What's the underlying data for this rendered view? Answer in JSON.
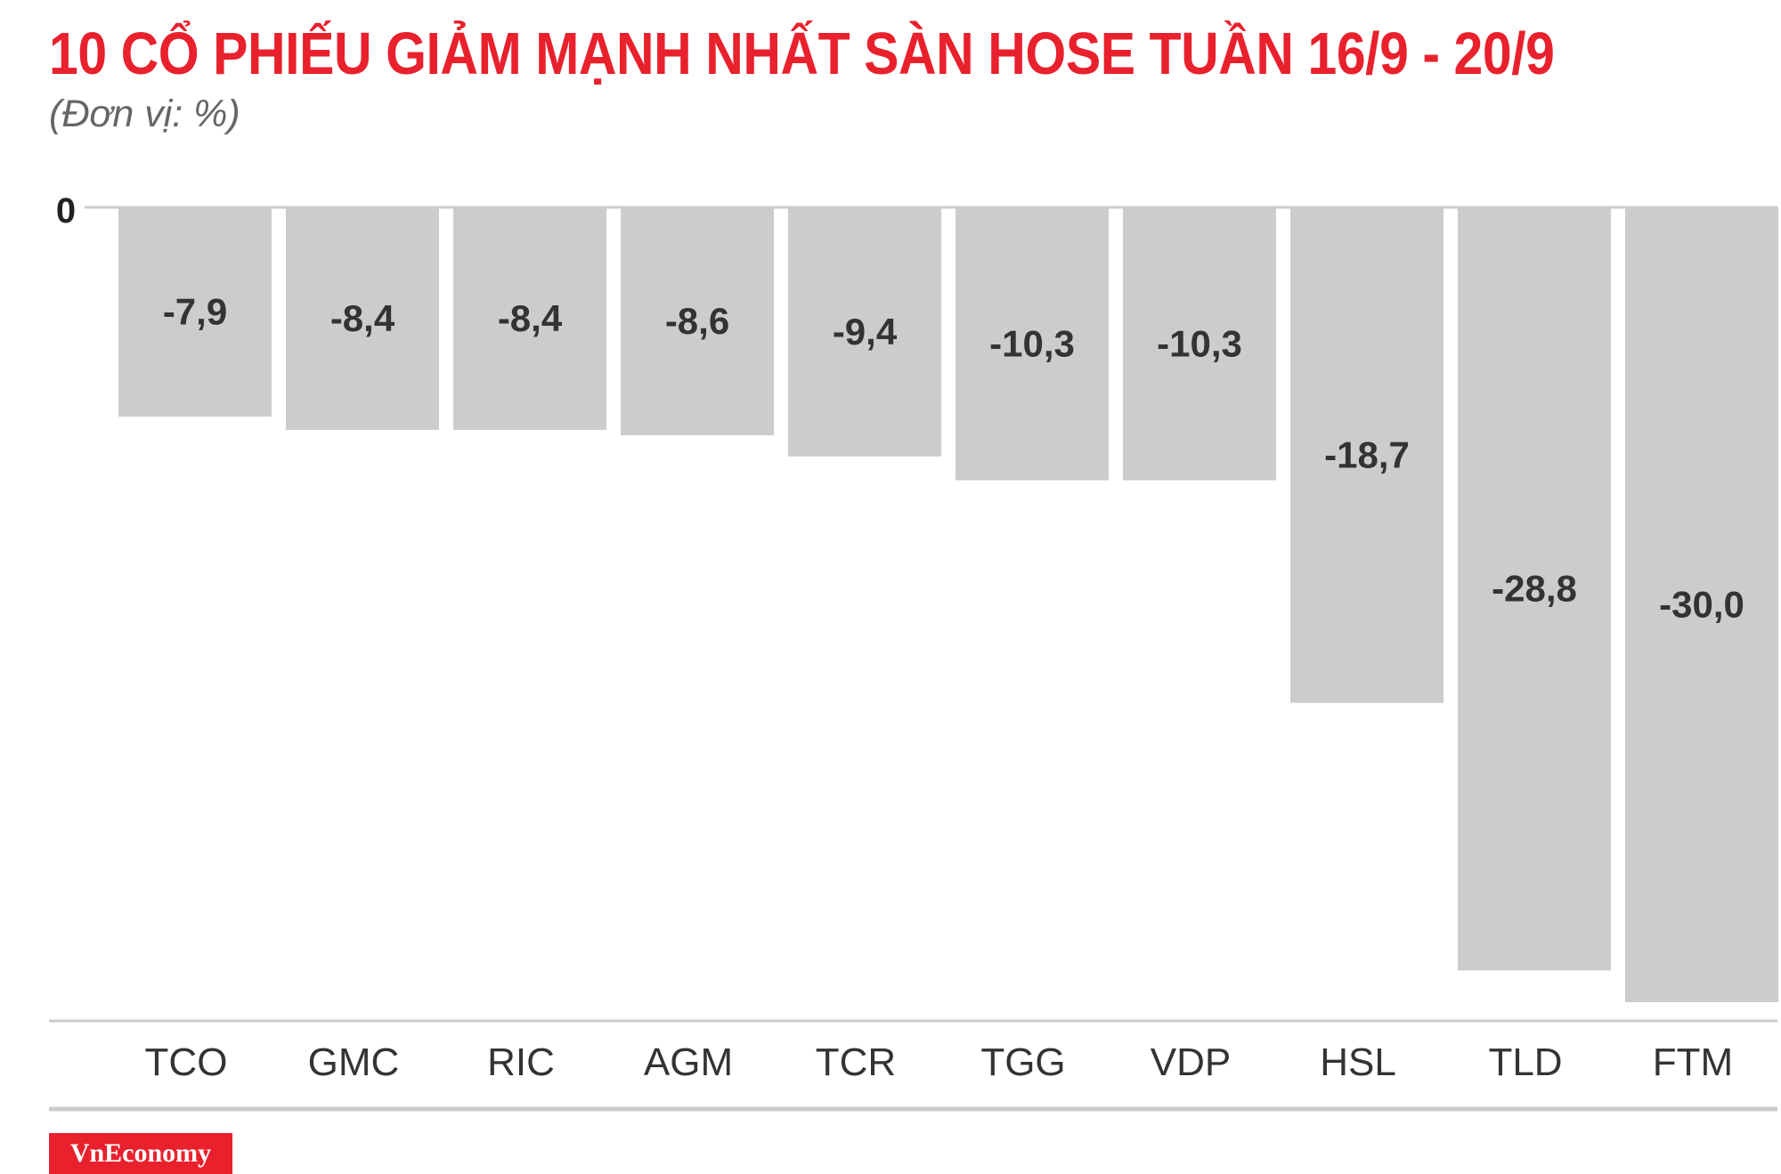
{
  "header": {
    "title": "10 CỔ PHIẾU GIẢM MẠNH NHẤT SÀN HOSE TUẦN 16/9 - 20/9",
    "subtitle": "(Đơn vị: %)"
  },
  "brand": {
    "logo_text": "VnEconomy",
    "color": "#e8212d"
  },
  "colors": {
    "bar": "#cccccc",
    "title": "#e8212d",
    "label": "#333333",
    "axis": "#cccccc"
  },
  "chart_data": {
    "type": "bar",
    "title": "10 CỔ PHIẾU GIẢM MẠNH NHẤT SÀN HOSE TUẦN 16/9 - 20/9",
    "subtitle": "(Đơn vị: %)",
    "categories": [
      "TCO",
      "GMC",
      "RIC",
      "AGM",
      "TCR",
      "TGG",
      "VDP",
      "HSL",
      "TLD",
      "FTM"
    ],
    "values": [
      -7.9,
      -8.4,
      -8.4,
      -8.6,
      -9.4,
      -10.3,
      -10.3,
      -18.7,
      -28.8,
      -30.0
    ],
    "value_labels": [
      "-7,9",
      "-8,4",
      "-8,4",
      "-8,6",
      "-9,4",
      "-10,3",
      "-10,3",
      "-18,7",
      "-28,8",
      "-30,0"
    ],
    "zero_label": "0",
    "ylim": [
      -30,
      0
    ],
    "grid": false,
    "legend": "none"
  }
}
